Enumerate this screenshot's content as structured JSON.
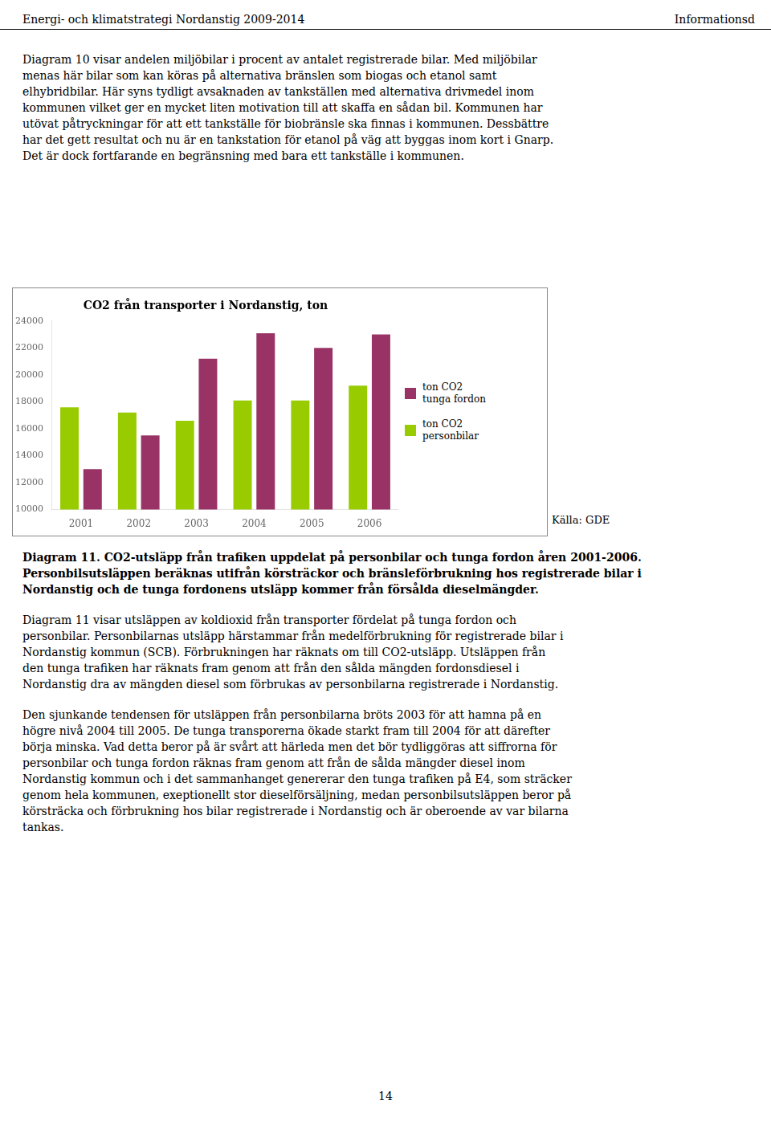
{
  "header_left": "Energi- och klimatstrategi Nordanstig 2009-2014",
  "header_right": "Informationsd",
  "text_before": [
    "Diagram 10 visar andelen miljöbilar i procent av antalet registrerade bilar. Med miljöbilar",
    "menas här bilar som kan köras på alternativa bränslen som biogas och etanol samt",
    "elhybridbilar. Här syns tydligt avsaknaden av tankställen med alternativa drivmedel inom",
    "kommunen vilket ger en mycket liten motivation till att skaffa en sådan bil. Kommunen har",
    "utövat påtryckningar för att ett tankställe för biobränsle ska finnas i kommunen. Dessbättre",
    "har det gett resultat och nu är en tankstation för etanol på väg att byggas inom kort i Gnarp.",
    "Det är dock fortfarande en begränsning med bara ett tankställe i kommunen."
  ],
  "caption": [
    "Diagram 11.  CO2-utsläpp från trafiken uppdelat på personbilar och tunga fordon åren 2001-2006.",
    "Personbilsutsläppen beräknas utifrån körsträckor och bränsleförbrukning hos registrerade bilar i",
    "Nordanstig och de tunga fordonens utsläpp kommer från försålda dieselmängder."
  ],
  "text_after": [
    [
      "Diagram 11 visar utsläppen av koldioxid från transporter fördelat på tunga fordon och",
      "personbilar. Personbilarnas utsläpp härstammar från medelförbrukning för registrerade bilar i",
      "Nordanstig kommun (SCB). Förbrukningen har räknats om till CO2-utsläpp. Utsläppen från",
      "den tunga trafiken har räknats fram genom att från den sålda mängden fordonsdiesel i",
      "Nordanstig dra av mängden diesel som förbrukas av personbilarna registrerade i Nordanstig."
    ],
    [
      "Den sjunkande tendensen för utsläppen från personbilarna bröts 2003 för att hamna på en",
      "högre nivå 2004 till 2005. De tunga transporerna ökade starkt fram till 2004 för att därefter",
      "börja minska. Vad detta beror på är svårt att härleda men det bör tydliggöras att siffrorna för",
      "personbilar och tunga fordon räknas fram genom att från de sålda mängder diesel inom",
      "Nordanstig kommun och i det sammanhanget genererar den tunga trafiken på  E4, som sträcker",
      "genom hela kommunen, exeptionellt stor dieselförsäljning, medan personbilsutsläppen beror på",
      "körsträcka och förbrukning hos bilar registrerade i Nordanstig och är oberoende av var bilarna",
      "tankas."
    ]
  ],
  "page_number": "14",
  "chart_data": {
    "type": "bar",
    "title": "CO2 från transporter i Nordanstig, ton",
    "categories": [
      "2001",
      "2002",
      "2003",
      "2004",
      "2005",
      "2006"
    ],
    "series": [
      {
        "name": "ton CO2\npersonbilar",
        "color": "#99cc00",
        "values": [
          17600,
          17200,
          16600,
          18100,
          18100,
          19200
        ]
      },
      {
        "name": "ton CO2\ntunga fordon",
        "color": "#993366",
        "values": [
          13000,
          15500,
          21200,
          23100,
          22000,
          23000
        ]
      }
    ],
    "ylim": [
      10000,
      24000
    ],
    "yticks": [
      10000,
      12000,
      14000,
      16000,
      18000,
      20000,
      22000,
      24000
    ],
    "grid": false,
    "legend": "right",
    "source": "Källa: GDE"
  }
}
